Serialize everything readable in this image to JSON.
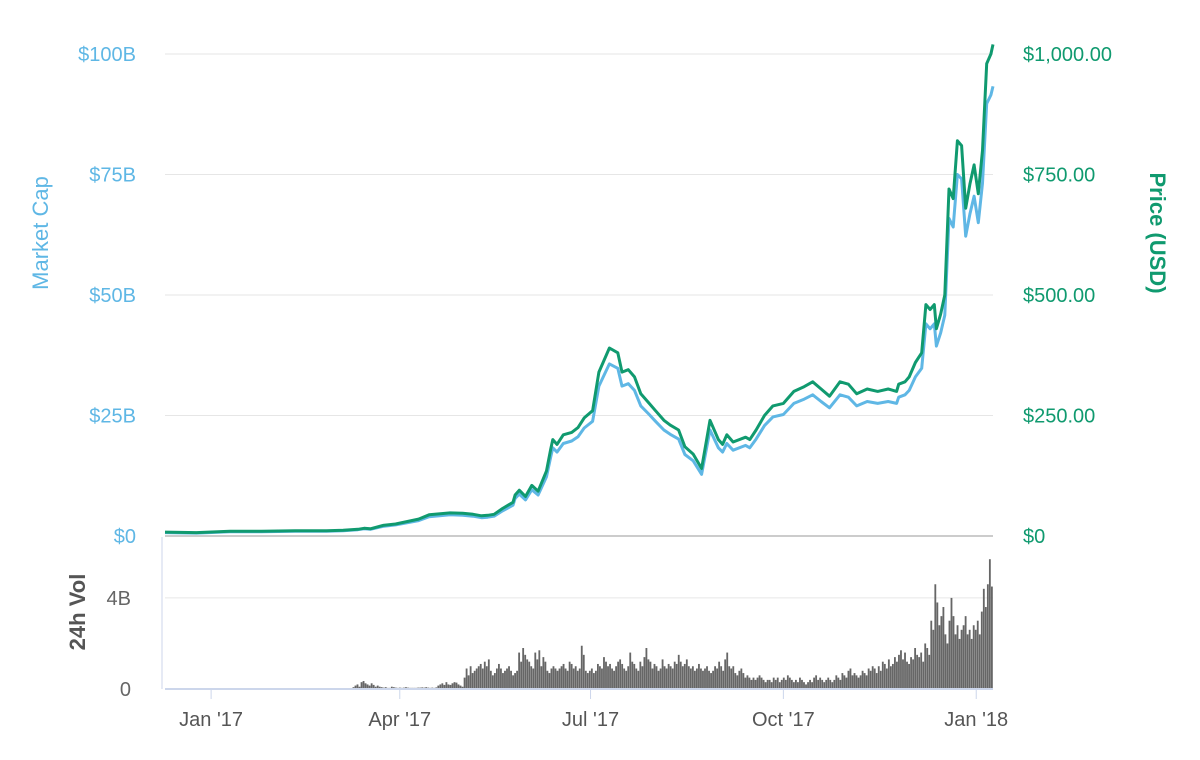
{
  "chart_data": {
    "type": "line",
    "title": "",
    "colors": {
      "market_cap": "#5fb7e5",
      "price": "#109a6f",
      "volume": "#666666",
      "grid": "#e6e6e6"
    },
    "x_ticks": [
      "Jan '17",
      "Apr '17",
      "Jul '17",
      "Oct '17",
      "Jan '18"
    ],
    "axes": {
      "market_cap": {
        "label": "Market Cap",
        "ticks": [
          "$0",
          "$25B",
          "$50B",
          "$75B",
          "$100B"
        ],
        "ylim": [
          0,
          100
        ]
      },
      "price": {
        "label": "Price (USD)",
        "ticks": [
          "$0",
          "$250.00",
          "$500.00",
          "$750.00",
          "$1,000.00"
        ],
        "ylim": [
          0,
          1000
        ]
      },
      "volume": {
        "label": "24h Vol",
        "ticks": [
          "0",
          "4B"
        ],
        "ylim": [
          0,
          6.5
        ]
      }
    },
    "x_range": [
      "2016-12-10",
      "2018-01-09"
    ],
    "grid": true,
    "legend": "none",
    "series": [
      {
        "key": "price",
        "x": [
          "2016-12-10",
          "2016-12-25",
          "2017-01-10",
          "2017-01-25",
          "2017-02-10",
          "2017-02-25",
          "2017-03-05",
          "2017-03-12",
          "2017-03-15",
          "2017-03-18",
          "2017-03-24",
          "2017-03-30",
          "2017-04-10",
          "2017-04-15",
          "2017-04-25",
          "2017-05-01",
          "2017-05-06",
          "2017-05-10",
          "2017-05-13",
          "2017-05-16",
          "2017-05-20",
          "2017-05-25",
          "2017-05-26",
          "2017-05-28",
          "2017-05-31",
          "2017-06-03",
          "2017-06-06",
          "2017-06-10",
          "2017-06-12",
          "2017-06-13",
          "2017-06-15",
          "2017-06-18",
          "2017-06-22",
          "2017-06-25",
          "2017-06-28",
          "2017-07-02",
          "2017-07-05",
          "2017-07-10",
          "2017-07-14",
          "2017-07-16",
          "2017-07-19",
          "2017-07-22",
          "2017-07-25",
          "2017-07-29",
          "2017-08-01",
          "2017-08-05",
          "2017-08-08",
          "2017-08-12",
          "2017-08-15",
          "2017-08-19",
          "2017-08-23",
          "2017-08-27",
          "2017-08-31",
          "2017-09-02",
          "2017-09-04",
          "2017-09-07",
          "2017-09-13",
          "2017-09-15",
          "2017-09-18",
          "2017-09-22",
          "2017-09-26",
          "2017-10-01",
          "2017-10-06",
          "2017-10-11",
          "2017-10-15",
          "2017-10-19",
          "2017-10-23",
          "2017-10-28",
          "2017-11-01",
          "2017-11-05",
          "2017-11-10",
          "2017-11-15",
          "2017-11-20",
          "2017-11-24",
          "2017-11-25",
          "2017-11-28",
          "2017-11-30",
          "2017-12-03",
          "2017-12-06",
          "2017-12-08",
          "2017-12-10",
          "2017-12-12",
          "2017-12-13",
          "2017-12-15",
          "2017-12-17",
          "2017-12-19",
          "2017-12-21",
          "2017-12-23",
          "2017-12-25",
          "2017-12-27",
          "2017-12-29",
          "2017-12-31",
          "2018-01-02",
          "2018-01-04",
          "2018-01-06",
          "2018-01-08",
          "2018-01-09"
        ],
        "values": [
          8,
          7,
          10,
          10,
          11,
          11,
          12,
          14,
          16,
          15,
          22,
          25,
          35,
          44,
          48,
          47,
          45,
          42,
          43,
          45,
          57,
          70,
          85,
          95,
          82,
          105,
          93,
          135,
          180,
          200,
          190,
          210,
          215,
          225,
          245,
          260,
          340,
          390,
          380,
          340,
          345,
          330,
          295,
          275,
          260,
          240,
          230,
          220,
          185,
          170,
          140,
          240,
          200,
          190,
          210,
          195,
          205,
          200,
          220,
          250,
          270,
          275,
          300,
          310,
          320,
          305,
          290,
          320,
          315,
          295,
          305,
          300,
          305,
          300,
          315,
          320,
          330,
          360,
          380,
          480,
          470,
          480,
          430,
          460,
          500,
          720,
          700,
          820,
          810,
          680,
          730,
          770,
          710,
          800,
          980,
          1000,
          1020
        ]
      },
      {
        "key": "market_cap",
        "x": [
          "2016-12-10",
          "2016-12-25",
          "2017-01-10",
          "2017-01-25",
          "2017-02-10",
          "2017-02-25",
          "2017-03-05",
          "2017-03-12",
          "2017-03-15",
          "2017-03-18",
          "2017-03-24",
          "2017-03-30",
          "2017-04-10",
          "2017-04-15",
          "2017-04-25",
          "2017-05-01",
          "2017-05-06",
          "2017-05-10",
          "2017-05-13",
          "2017-05-16",
          "2017-05-20",
          "2017-05-25",
          "2017-05-26",
          "2017-05-28",
          "2017-05-31",
          "2017-06-03",
          "2017-06-06",
          "2017-06-10",
          "2017-06-12",
          "2017-06-13",
          "2017-06-15",
          "2017-06-18",
          "2017-06-22",
          "2017-06-25",
          "2017-06-28",
          "2017-07-02",
          "2017-07-05",
          "2017-07-10",
          "2017-07-14",
          "2017-07-16",
          "2017-07-19",
          "2017-07-22",
          "2017-07-25",
          "2017-07-29",
          "2017-08-01",
          "2017-08-05",
          "2017-08-08",
          "2017-08-12",
          "2017-08-15",
          "2017-08-19",
          "2017-08-23",
          "2017-08-27",
          "2017-08-31",
          "2017-09-02",
          "2017-09-04",
          "2017-09-07",
          "2017-09-13",
          "2017-09-15",
          "2017-09-18",
          "2017-09-22",
          "2017-09-26",
          "2017-10-01",
          "2017-10-06",
          "2017-10-11",
          "2017-10-15",
          "2017-10-19",
          "2017-10-23",
          "2017-10-28",
          "2017-11-01",
          "2017-11-05",
          "2017-11-10",
          "2017-11-15",
          "2017-11-20",
          "2017-11-24",
          "2017-11-25",
          "2017-11-28",
          "2017-11-30",
          "2017-12-03",
          "2017-12-06",
          "2017-12-08",
          "2017-12-10",
          "2017-12-12",
          "2017-12-13",
          "2017-12-15",
          "2017-12-17",
          "2017-12-19",
          "2017-12-21",
          "2017-12-23",
          "2017-12-25",
          "2017-12-27",
          "2017-12-29",
          "2017-12-31",
          "2018-01-02",
          "2018-01-04",
          "2018-01-06",
          "2018-01-08",
          "2018-01-09"
        ],
        "values": [
          0.7,
          0.6,
          0.9,
          0.9,
          1.0,
          1.0,
          1.1,
          1.3,
          1.5,
          1.4,
          2.0,
          2.3,
          3.2,
          4.0,
          4.4,
          4.3,
          4.1,
          3.8,
          3.9,
          4.1,
          5.2,
          6.4,
          7.8,
          8.7,
          7.5,
          9.6,
          8.5,
          12.3,
          16.4,
          18.3,
          17.4,
          19.2,
          19.7,
          20.6,
          22.4,
          23.8,
          31.1,
          35.7,
          34.8,
          31.1,
          31.6,
          30.2,
          27.0,
          25.2,
          23.8,
          22.0,
          21.1,
          20.1,
          16.9,
          15.6,
          12.8,
          22.0,
          18.3,
          17.4,
          19.2,
          17.8,
          18.8,
          18.3,
          20.1,
          22.9,
          24.7,
          25.2,
          27.5,
          28.4,
          29.3,
          27.9,
          26.6,
          29.3,
          28.8,
          27.0,
          27.9,
          27.5,
          27.9,
          27.5,
          28.8,
          29.3,
          30.2,
          33.0,
          34.8,
          44.0,
          43.0,
          44.0,
          39.4,
          42.1,
          45.8,
          65.9,
          64.1,
          75.0,
          74.1,
          62.2,
          66.8,
          70.5,
          65.0,
          73.2,
          89.7,
          91.5,
          93.3
        ]
      }
    ],
    "volume": {
      "x_start": "2017-01-01",
      "x_end": "2018-01-09",
      "bars": [
        0.01,
        0.01,
        0.01,
        0.01,
        0.01,
        0.01,
        0.01,
        0.01,
        0.01,
        0.01,
        0.01,
        0.01,
        0.01,
        0.01,
        0.01,
        0.01,
        0.01,
        0.01,
        0.01,
        0.01,
        0.01,
        0.01,
        0.01,
        0.01,
        0.01,
        0.01,
        0.01,
        0.01,
        0.01,
        0.01,
        0.01,
        0.01,
        0.01,
        0.01,
        0.01,
        0.01,
        0.01,
        0.01,
        0.01,
        0.01,
        0.01,
        0.01,
        0.01,
        0.01,
        0.01,
        0.01,
        0.01,
        0.01,
        0.01,
        0.01,
        0.01,
        0.01,
        0.01,
        0.01,
        0.01,
        0.01,
        0.01,
        0.01,
        0.01,
        0.01,
        0.01,
        0.01,
        0.01,
        0.01,
        0.01,
        0.01,
        0.01,
        0.01,
        0.01,
        0.01,
        0.08,
        0.15,
        0.2,
        0.1,
        0.3,
        0.35,
        0.25,
        0.2,
        0.15,
        0.25,
        0.18,
        0.1,
        0.15,
        0.1,
        0.08,
        0.06,
        0.08,
        0.05,
        0.05,
        0.1,
        0.08,
        0.06,
        0.05,
        0.06,
        0.05,
        0.06,
        0.08,
        0.06,
        0.05,
        0.05,
        0.05,
        0.05,
        0.06,
        0.06,
        0.07,
        0.06,
        0.08,
        0.06,
        0.05,
        0.06,
        0.05,
        0.07,
        0.15,
        0.2,
        0.25,
        0.18,
        0.3,
        0.2,
        0.18,
        0.25,
        0.3,
        0.28,
        0.2,
        0.15,
        0.1,
        0.5,
        0.9,
        0.6,
        1.0,
        0.7,
        0.8,
        0.9,
        1.0,
        1.1,
        0.9,
        1.2,
        1.0,
        1.3,
        0.8,
        0.6,
        0.7,
        0.9,
        1.1,
        0.9,
        0.7,
        0.8,
        0.9,
        1.0,
        0.8,
        0.6,
        0.7,
        0.8,
        1.6,
        1.2,
        1.8,
        1.5,
        1.3,
        1.2,
        1.0,
        0.9,
        1.6,
        1.3,
        1.7,
        1.0,
        1.4,
        1.2,
        0.8,
        0.7,
        0.9,
        1.0,
        0.9,
        0.8,
        0.9,
        1.0,
        1.1,
        0.9,
        0.8,
        1.2,
        1.1,
        0.9,
        1.0,
        0.8,
        0.9,
        1.9,
        1.5,
        0.8,
        0.7,
        0.8,
        0.9,
        0.7,
        0.8,
        1.1,
        1.0,
        0.9,
        1.4,
        1.2,
        1.0,
        1.1,
        0.9,
        0.8,
        1.0,
        1.2,
        1.3,
        1.1,
        0.9,
        0.8,
        1.0,
        1.6,
        1.2,
        1.1,
        0.9,
        0.8,
        1.2,
        1.0,
        1.4,
        1.8,
        1.3,
        1.2,
        0.9,
        1.1,
        1.0,
        0.8,
        0.9,
        1.3,
        1.0,
        0.9,
        1.1,
        1.0,
        0.9,
        1.2,
        1.1,
        1.5,
        1.2,
        1.0,
        1.1,
        1.3,
        1.0,
        0.9,
        1.0,
        0.8,
        0.9,
        1.1,
        0.9,
        0.8,
        0.9,
        1.0,
        0.8,
        0.7,
        0.8,
        1.0,
        0.9,
        1.2,
        1.0,
        0.8,
        1.3,
        1.6,
        1.0,
        0.9,
        1.0,
        0.7,
        0.6,
        0.8,
        0.9,
        0.7,
        0.5,
        0.6,
        0.5,
        0.4,
        0.5,
        0.4,
        0.5,
        0.6,
        0.5,
        0.4,
        0.3,
        0.4,
        0.4,
        0.3,
        0.5,
        0.4,
        0.5,
        0.3,
        0.4,
        0.5,
        0.4,
        0.6,
        0.5,
        0.4,
        0.3,
        0.4,
        0.3,
        0.5,
        0.4,
        0.3,
        0.2,
        0.3,
        0.4,
        0.3,
        0.5,
        0.6,
        0.4,
        0.5,
        0.4,
        0.3,
        0.4,
        0.5,
        0.4,
        0.3,
        0.4,
        0.6,
        0.5,
        0.4,
        0.7,
        0.6,
        0.5,
        0.8,
        0.9,
        0.6,
        0.7,
        0.6,
        0.5,
        0.6,
        0.8,
        0.7,
        0.6,
        0.9,
        0.8,
        1.0,
        0.9,
        0.7,
        1.0,
        0.8,
        1.2,
        1.1,
        0.9,
        1.3,
        1.0,
        1.1,
        1.4,
        1.2,
        1.5,
        1.7,
        1.3,
        1.6,
        1.2,
        1.1,
        1.4,
        1.3,
        1.8,
        1.5,
        1.4,
        1.6,
        1.2,
        2.0,
        1.8,
        1.5,
        3.0,
        2.6,
        4.6,
        3.8,
        2.8,
        3.2,
        3.6,
        2.4,
        2.0,
        3.0,
        4.0,
        3.2,
        2.4,
        2.8,
        2.2,
        2.6,
        2.8,
        3.2,
        2.4,
        2.6,
        2.2,
        2.8,
        2.6,
        3.0,
        2.4,
        3.4,
        4.4,
        3.6,
        4.6,
        5.7,
        4.5
      ]
    }
  }
}
